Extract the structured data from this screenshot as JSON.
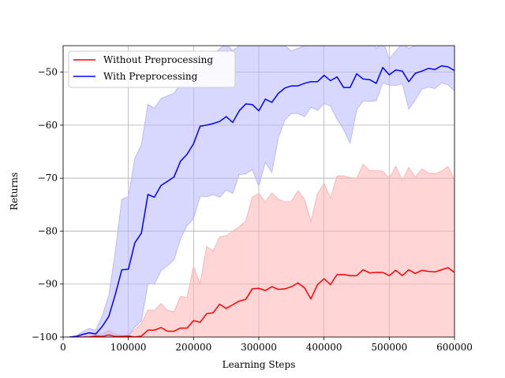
{
  "chart_data": {
    "type": "line",
    "title": "",
    "xlabel": "Learning Steps",
    "ylabel": "Returns",
    "xlim": [
      0,
      600000
    ],
    "ylim": [
      -100,
      -45
    ],
    "grid": true,
    "legend_position": "top-left",
    "x_ticks": [
      0,
      100000,
      200000,
      300000,
      400000,
      500000,
      600000
    ],
    "x_tick_labels": [
      "0",
      "100000",
      "200000",
      "300000",
      "400000",
      "500000",
      "600000"
    ],
    "y_ticks": [
      -100,
      -90,
      -80,
      -70,
      -60,
      -50
    ],
    "y_tick_labels": [
      "−100",
      "−90",
      "−80",
      "−70",
      "−60",
      "−50"
    ],
    "x": [
      10000,
      20000,
      30000,
      40000,
      50000,
      60000,
      70000,
      80000,
      90000,
      100000,
      110000,
      120000,
      130000,
      140000,
      150000,
      160000,
      170000,
      180000,
      190000,
      200000,
      210000,
      220000,
      230000,
      240000,
      250000,
      260000,
      270000,
      280000,
      290000,
      300000,
      310000,
      320000,
      330000,
      340000,
      350000,
      360000,
      370000,
      380000,
      390000,
      400000,
      410000,
      420000,
      430000,
      440000,
      450000,
      460000,
      470000,
      480000,
      490000,
      500000,
      510000,
      520000,
      530000,
      540000,
      550000,
      560000,
      570000,
      580000,
      590000,
      600000
    ],
    "series": [
      {
        "name": "Without Preprocessing",
        "color": "#ff0000",
        "band_color": "#ffb3b3",
        "values": [
          -100,
          -100,
          -100,
          -100,
          -99.8,
          -99.9,
          -99.6,
          -99.9,
          -99.9,
          -99.8,
          -100,
          -99.8,
          -98.7,
          -98.7,
          -98.2,
          -98.9,
          -98.9,
          -98.3,
          -98.3,
          -96.9,
          -97.2,
          -95.6,
          -95.4,
          -93.8,
          -94.6,
          -93.9,
          -93.2,
          -92.9,
          -90.9,
          -90.8,
          -91.2,
          -90.5,
          -91.0,
          -90.9,
          -90.5,
          -89.8,
          -90.7,
          -92.8,
          -90.1,
          -89.0,
          -90.1,
          -88.2,
          -88.2,
          -88.4,
          -88.4,
          -87.3,
          -87.9,
          -87.8,
          -87.8,
          -88.4,
          -87.4,
          -88.4,
          -87.3,
          -88.0,
          -87.4,
          -87.6,
          -87.7,
          -87.3,
          -86.9,
          -87.8
        ],
        "lower": [
          -100,
          -100,
          -100,
          -100,
          -100,
          -100,
          -100,
          -100,
          -100,
          -100,
          -100,
          -100,
          -100,
          -100,
          -100,
          -100,
          -100,
          -100,
          -100,
          -100,
          -100,
          -100,
          -100,
          -100,
          -100,
          -100,
          -100,
          -100,
          -100,
          -100,
          -100,
          -100,
          -100,
          -100,
          -100,
          -100,
          -100,
          -100,
          -100,
          -100,
          -100,
          -100,
          -100,
          -100,
          -100,
          -100,
          -100,
          -100,
          -100,
          -100,
          -100,
          -100,
          -100,
          -100,
          -100,
          -100,
          -100,
          -100,
          -100,
          -100
        ],
        "upper": [
          -100,
          -100,
          -100,
          -99.6,
          -99.2,
          -99.4,
          -98.7,
          -99.4,
          -99.7,
          -99.5,
          -98.6,
          -97.5,
          -94.9,
          -95.0,
          -93.7,
          -95.0,
          -95.2,
          -92.3,
          -92.6,
          -86.6,
          -90.0,
          -82.9,
          -83.8,
          -81.1,
          -80.9,
          -80.0,
          -79.2,
          -78.1,
          -73.6,
          -72.9,
          -74.5,
          -72.8,
          -74.0,
          -74.5,
          -74.4,
          -72.4,
          -74.0,
          -78.2,
          -72.9,
          -71.0,
          -73.8,
          -69.6,
          -69.6,
          -69.9,
          -70.0,
          -67.4,
          -68.6,
          -68.6,
          -68.7,
          -70.0,
          -67.8,
          -70.5,
          -68.0,
          -69.8,
          -68.3,
          -69.0,
          -69.2,
          -68.7,
          -67.8,
          -70.3
        ]
      },
      {
        "name": "With Preprocessing",
        "color": "#0000ff",
        "band_color": "#b8b8ff",
        "values": [
          -100,
          -99.9,
          -99.5,
          -99.2,
          -99.4,
          -98.0,
          -96.1,
          -92.0,
          -87.3,
          -87.2,
          -82.2,
          -80.4,
          -73.1,
          -73.6,
          -71.4,
          -70.6,
          -69.8,
          -66.8,
          -65.5,
          -63.5,
          -60.2,
          -60.0,
          -59.7,
          -59.3,
          -58.4,
          -59.5,
          -57.3,
          -56.0,
          -56.1,
          -57.3,
          -55.1,
          -55.7,
          -54.0,
          -53.0,
          -52.6,
          -52.6,
          -52.1,
          -51.8,
          -51.8,
          -50.6,
          -51.6,
          -50.9,
          -52.9,
          -52.9,
          -50.3,
          -51.3,
          -51.4,
          -52.1,
          -49.1,
          -50.5,
          -49.6,
          -49.8,
          -51.8,
          -50.2,
          -49.8,
          -49.3,
          -49.5,
          -48.8,
          -49.0,
          -49.7
        ],
        "lower": [
          -100,
          -100,
          -100,
          -100,
          -100,
          -100,
          -100,
          -100,
          -100,
          -100,
          -98.1,
          -97.0,
          -89.9,
          -90.0,
          -87.5,
          -86.5,
          -85.4,
          -81.4,
          -79.0,
          -77.6,
          -73.4,
          -73.5,
          -73.1,
          -73.6,
          -72.2,
          -72.9,
          -69.3,
          -69.2,
          -68.4,
          -71.5,
          -67.0,
          -68.9,
          -62.3,
          -59.0,
          -57.8,
          -57.8,
          -58.4,
          -56.6,
          -57.2,
          -55.9,
          -56.4,
          -58.9,
          -60.8,
          -63.4,
          -57.1,
          -55.4,
          -55.5,
          -55.4,
          -52.0,
          -52.4,
          -52.5,
          -52.2,
          -57.0,
          -55.2,
          -53.2,
          -52.8,
          -53.1,
          -52.0,
          -52.4,
          -53.5
        ],
        "upper": [
          -100,
          -99.7,
          -99.0,
          -98.4,
          -98.7,
          -96.0,
          -92.2,
          -84.0,
          -74.0,
          -73.5,
          -66.3,
          -63.7,
          -56.1,
          -56.8,
          -55.0,
          -54.5,
          -54.0,
          -52.2,
          -51.8,
          -49.4,
          -47.4,
          -46.7,
          -46.5,
          -45.6,
          -44.5,
          -46.0,
          -45.0,
          -42.8,
          -43.7,
          -43.1,
          -43.2,
          -42.7,
          -43.5,
          -45.0,
          -46.0,
          -45.5,
          -45.0,
          -45.0,
          -44.5,
          -45.2,
          -44.0,
          -43.0,
          -44.5,
          -42.0,
          -43.0,
          -44.0,
          -43.5,
          -45.5,
          -44.0,
          -47.5,
          -46.0,
          -44.5,
          -45.5,
          -45.0,
          -44.5,
          -44.0,
          -45.0,
          -44.0,
          -44.5,
          -45.0
        ]
      }
    ]
  }
}
